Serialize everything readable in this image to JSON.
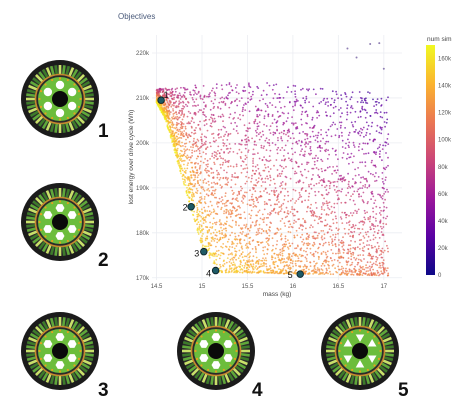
{
  "panel_title": "Objectives",
  "chart_data": {
    "type": "scatter",
    "title": "Objectives",
    "xlabel": "mass (kg)",
    "ylabel": "lost energy over drive cycle (Wh)",
    "xlim": [
      14.45,
      17.2
    ],
    "ylim": [
      169.5,
      224
    ],
    "x_ticks": [
      "14.5",
      "15",
      "15.5",
      "16",
      "16.5",
      "17"
    ],
    "y_ticks": [
      "170k",
      "180k",
      "190k",
      "200k",
      "210k",
      "220k"
    ],
    "x_tick_values": [
      14.5,
      15,
      15.5,
      16,
      16.5,
      17
    ],
    "y_tick_values": [
      170,
      180,
      190,
      200,
      210,
      220
    ],
    "grid": true,
    "colorbar": {
      "title": "num sim",
      "range": [
        0,
        170
      ],
      "ticks": [
        "0",
        "20k",
        "40k",
        "60k",
        "80k",
        "100k",
        "120k",
        "140k",
        "160k"
      ],
      "tick_values": [
        0,
        20,
        40,
        60,
        80,
        100,
        120,
        140,
        160
      ],
      "colors": [
        "#0d0887",
        "#5b02a3",
        "#9a179b",
        "#cb4678",
        "#eb7852",
        "#fbb32f",
        "#f0f921"
      ]
    },
    "highlighted": [
      {
        "label": "1",
        "x": 14.55,
        "y": 209.5
      },
      {
        "label": "2",
        "x": 14.88,
        "y": 185.8
      },
      {
        "label": "3",
        "x": 15.02,
        "y": 175.8
      },
      {
        "label": "4",
        "x": 15.15,
        "y": 171.6
      },
      {
        "label": "5",
        "x": 16.08,
        "y": 170.8
      }
    ]
  },
  "designs": [
    {
      "label": "1",
      "slot_shape": "round"
    },
    {
      "label": "2",
      "slot_shape": "hex"
    },
    {
      "label": "3",
      "slot_shape": "hex"
    },
    {
      "label": "4",
      "slot_shape": "hex"
    },
    {
      "label": "5",
      "slot_shape": "triangle"
    }
  ]
}
